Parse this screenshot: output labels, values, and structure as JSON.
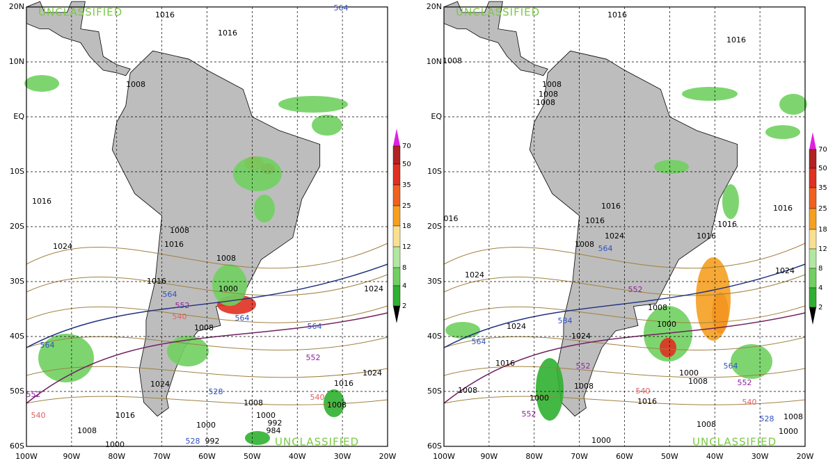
{
  "panels": [
    {
      "lat_labels": [
        "20N",
        "10N",
        "EQ",
        "10S",
        "20S",
        "30S",
        "40S",
        "50S",
        "60S"
      ],
      "lon_labels": [
        "100W",
        "90W",
        "80W",
        "70W",
        "60W",
        "50W",
        "40W",
        "30W",
        "20W"
      ],
      "classification": [
        "UNCLASSIFIED",
        "UNCLASSIFIED"
      ],
      "colorbar_labels": [
        "70",
        "50",
        "35",
        "25",
        "18",
        "12",
        "8",
        "4",
        "2"
      ],
      "contour_labels": [
        "564",
        "1016",
        "1016",
        "1008",
        "1016",
        "1024",
        "1008",
        "1016",
        "1008",
        "1016",
        "1000",
        "564",
        "552",
        "540",
        "1008",
        "564",
        "564",
        "1024",
        "564",
        "552",
        "1024",
        "1016",
        "528",
        "1024",
        "1008",
        "540",
        "1008",
        "552",
        "540",
        "1016",
        "1000",
        "992",
        "984",
        "1008",
        "1000",
        "1000",
        "528",
        "992"
      ]
    },
    {
      "lat_labels": [
        "20N",
        "10N",
        "EQ",
        "10S",
        "20S",
        "30S",
        "40S",
        "50S",
        "60S"
      ],
      "lon_labels": [
        "100W",
        "90W",
        "80W",
        "70W",
        "60W",
        "50W",
        "40W",
        "30W",
        "20W"
      ],
      "classification": [
        "UNCLASSIFIED",
        "UNCLASSIFIED"
      ],
      "colorbar_labels": [
        "70",
        "50",
        "35",
        "25",
        "18",
        "12",
        "8",
        "4",
        "2"
      ],
      "contour_labels": [
        "1016",
        "1016",
        "1008",
        "1008",
        "1008",
        "1008",
        "1016",
        "1016",
        "1016",
        "1024",
        "1016",
        "1016",
        "1008",
        "564",
        "016",
        "1024",
        "1024",
        "552",
        "1008",
        "1000",
        "584",
        "1024",
        "1024",
        "564",
        "1016",
        "552",
        "564",
        "1000",
        "1008",
        "552",
        "1008",
        "1008",
        "540",
        "1016",
        "1000",
        "540",
        "552",
        "1008",
        "528",
        "1008",
        "1000",
        "1000"
      ]
    }
  ]
}
